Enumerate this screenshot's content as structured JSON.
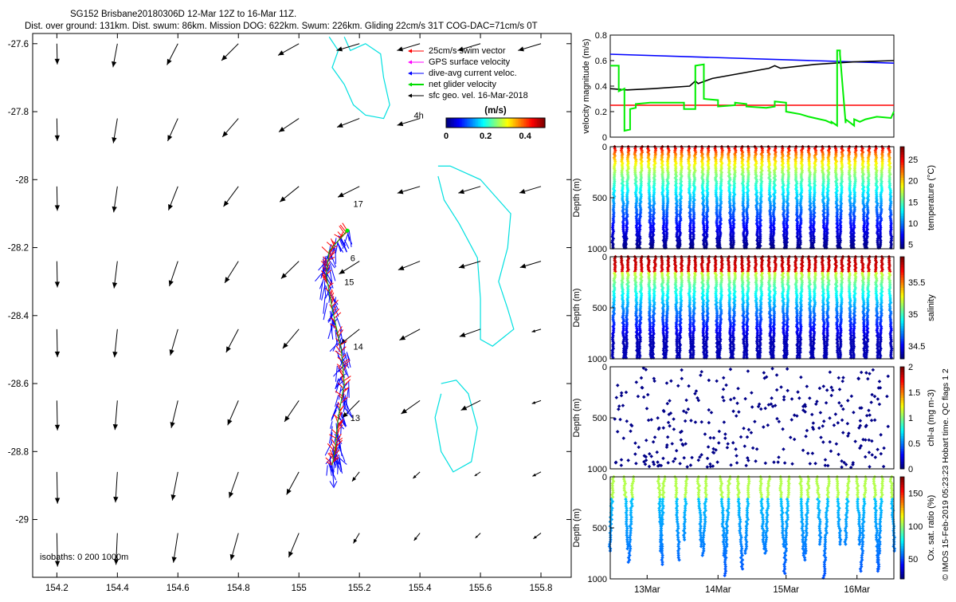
{
  "chart_data": [
    {
      "type": "scatter",
      "title_lines": [
        "SG152 Brisbane20180306D 12-Mar 12Z to 16-Mar 11Z.",
        "Dist. over ground: 131km. Dist. swum: 86km. Mission DOG: 622km. Swum: 226km. Gliding 22cm/s 31T COG-DAC=71cm/s 0T"
      ],
      "x_ticks": [
        "154.2",
        "154.4",
        "154.6",
        "154.8",
        "155",
        "155.2",
        "155.4",
        "155.6",
        "155.8"
      ],
      "y_ticks": [
        "-27.6",
        "-27.8",
        "-28",
        "-28.2",
        "-28.4",
        "-28.6",
        "-28.8",
        "-29"
      ],
      "xlim": [
        154.12,
        155.9
      ],
      "ylim": [
        -29.17,
        -27.57
      ],
      "legend": [
        {
          "label": "25cm/s swim vector",
          "color": "#ff0000"
        },
        {
          "label": "GPS surface velocity",
          "color": "#ff00ff"
        },
        {
          "label": "dive-avg current veloc.",
          "color": "#0000ff"
        },
        {
          "label": "net glider velocity",
          "color": "#00dd00"
        },
        {
          "label": "sfc geo. vel. 16-Mar-2018",
          "color": "#000000"
        }
      ],
      "colorbar": {
        "title": "(m/s)",
        "ticks": [
          "0",
          "0.2",
          "0.4"
        ],
        "range": [
          0,
          0.5
        ]
      },
      "annotations": [
        {
          "text": "4h",
          "lon": 155.38,
          "lat": -27.82
        },
        {
          "text": "17",
          "lon": 155.18,
          "lat": -28.08
        },
        {
          "text": "6",
          "lon": 155.17,
          "lat": -28.24
        },
        {
          "text": "15",
          "lon": 155.15,
          "lat": -28.31
        },
        {
          "text": "14",
          "lon": 155.18,
          "lat": -28.5
        },
        {
          "text": "13",
          "lon": 155.17,
          "lat": -28.71
        }
      ],
      "isobaths_note": "isobaths: 0   200  1000m"
    },
    {
      "type": "line",
      "ylabel": "velocity magnitude (m/s)",
      "y_ticks": [
        "0",
        "0.2",
        "0.4",
        "0.6",
        "0.8"
      ],
      "ylim": [
        0,
        0.8
      ],
      "series": [
        {
          "name": "blue",
          "color": "#0000ff",
          "x": [
            0,
            1
          ],
          "y": [
            0.65,
            0.58
          ]
        },
        {
          "name": "red",
          "color": "#ff0000",
          "x": [
            0,
            1
          ],
          "y": [
            0.25,
            0.25
          ]
        },
        {
          "name": "black",
          "color": "#000000",
          "x": [
            0,
            0.06,
            0.15,
            0.28,
            0.3,
            0.31,
            0.36,
            0.46,
            0.56,
            0.58,
            0.6,
            0.72,
            0.86,
            1
          ],
          "y": [
            0.38,
            0.37,
            0.38,
            0.4,
            0.44,
            0.42,
            0.46,
            0.5,
            0.54,
            0.56,
            0.54,
            0.57,
            0.59,
            0.6
          ]
        },
        {
          "name": "green",
          "color": "#00ee00",
          "x": [
            0,
            0.03,
            0.03,
            0.05,
            0.05,
            0.07,
            0.07,
            0.09,
            0.09,
            0.14,
            0.26,
            0.26,
            0.28,
            0.3,
            0.3,
            0.33,
            0.33,
            0.38,
            0.38,
            0.44,
            0.44,
            0.48,
            0.48,
            0.55,
            0.58,
            0.58,
            0.62,
            0.62,
            0.67,
            0.7,
            0.74,
            0.76,
            0.78,
            0.78,
            0.8,
            0.8,
            0.8,
            0.81,
            0.81,
            0.83,
            0.83,
            0.86,
            0.86,
            0.88,
            0.9,
            0.94,
            0.99,
            1
          ],
          "y": [
            0.56,
            0.56,
            0.36,
            0.38,
            0.05,
            0.06,
            0.22,
            0.23,
            0.26,
            0.27,
            0.27,
            0.22,
            0.22,
            0.22,
            0.56,
            0.57,
            0.3,
            0.29,
            0.24,
            0.25,
            0.27,
            0.26,
            0.24,
            0.23,
            0.24,
            0.28,
            0.27,
            0.2,
            0.18,
            0.16,
            0.14,
            0.13,
            0.11,
            0.12,
            0.09,
            0.12,
            0.68,
            0.68,
            0.65,
            0.11,
            0.14,
            0.09,
            0.14,
            0.12,
            0.14,
            0.16,
            0.15,
            0.2
          ]
        }
      ]
    },
    {
      "type": "scatter",
      "variable": "temperature",
      "ylabel": "Depth (m)",
      "colorbar_label": "temperature (°C)",
      "y_ticks": [
        "0",
        "500",
        "1000"
      ],
      "cbar_ticks": [
        "5",
        "10",
        "15",
        "20",
        "25"
      ],
      "cbar_range": [
        4,
        28
      ]
    },
    {
      "type": "scatter",
      "variable": "salinity",
      "ylabel": "Depth (m)",
      "colorbar_label": "salinity",
      "y_ticks": [
        "0",
        "500",
        "1000"
      ],
      "cbar_ticks": [
        "34.5",
        "35",
        "35.5"
      ],
      "cbar_range": [
        34.3,
        35.9
      ]
    },
    {
      "type": "scatter",
      "variable": "chl-a",
      "ylabel": "Depth (m)",
      "colorbar_label": "chl-a (mg m-3)",
      "y_ticks": [
        "0",
        "500",
        "1000"
      ],
      "cbar_ticks": [
        "0",
        "0.5",
        "1",
        "1.5",
        "2"
      ],
      "cbar_range": [
        0,
        2
      ]
    },
    {
      "type": "scatter",
      "variable": "oxygen",
      "ylabel": "Depth (m)",
      "colorbar_label": "Ox. sat. ratio (%)",
      "y_ticks": [
        "0",
        "500",
        "1000"
      ],
      "cbar_ticks": [
        "50",
        "100",
        "150"
      ],
      "cbar_range": [
        20,
        175
      ],
      "x_ticks": [
        "13Mar",
        "14Mar",
        "15Mar",
        "16Mar"
      ]
    }
  ],
  "footer": {
    "credit": "© IMOS 15-Feb-2019 05:23:23 Hobart time. QC flags 1  2"
  }
}
